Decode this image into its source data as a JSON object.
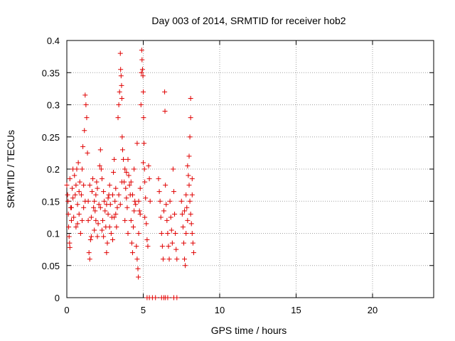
{
  "chart_data": {
    "type": "scatter",
    "title": "Day 003 of 2014, SRMTID for receiver hob2",
    "xlabel": "GPS time / hours",
    "ylabel": "SRMTID / TECUs",
    "xlim": [
      0,
      24
    ],
    "ylim": [
      0,
      0.4
    ],
    "x_ticks": [
      0,
      5,
      10,
      15,
      20
    ],
    "y_ticks": [
      0,
      0.05,
      0.1,
      0.15,
      0.2,
      0.25,
      0.3,
      0.35,
      0.4
    ],
    "x_tick_labels": [
      "0",
      "5",
      "10",
      "15",
      "20"
    ],
    "y_tick_labels": [
      "0",
      "0.05",
      "0.1",
      "0.15",
      "0.2",
      "0.25",
      "0.3",
      "0.35",
      "0.4"
    ],
    "grid": true,
    "marker": "+",
    "marker_color": "#e00000",
    "series": [
      {
        "points": [
          [
            0.0,
            0.175
          ],
          [
            0.05,
            0.16
          ],
          [
            0.08,
            0.15
          ],
          [
            0.1,
            0.13
          ],
          [
            0.12,
            0.11
          ],
          [
            0.15,
            0.095
          ],
          [
            0.18,
            0.085
          ],
          [
            0.2,
            0.078
          ],
          [
            0.25,
            0.14
          ],
          [
            0.3,
            0.12
          ],
          [
            0.35,
            0.17
          ],
          [
            0.4,
            0.155
          ],
          [
            0.45,
            0.125
          ],
          [
            0.5,
            0.19
          ],
          [
            0.55,
            0.16
          ],
          [
            0.6,
            0.11
          ],
          [
            0.65,
            0.2
          ],
          [
            0.7,
            0.145
          ],
          [
            0.75,
            0.21
          ],
          [
            0.8,
            0.13
          ],
          [
            0.85,
            0.18
          ],
          [
            0.9,
            0.1
          ],
          [
            0.95,
            0.16
          ],
          [
            1.0,
            0.12
          ],
          [
            1.05,
            0.235
          ],
          [
            1.1,
            0.175
          ],
          [
            1.15,
            0.26
          ],
          [
            1.2,
            0.315
          ],
          [
            1.25,
            0.3
          ],
          [
            1.3,
            0.28
          ],
          [
            1.35,
            0.225
          ],
          [
            1.4,
            0.15
          ],
          [
            1.45,
            0.07
          ],
          [
            1.5,
            0.06
          ],
          [
            1.55,
            0.09
          ],
          [
            1.6,
            0.125
          ],
          [
            1.65,
            0.165
          ],
          [
            1.7,
            0.185
          ],
          [
            1.75,
            0.14
          ],
          [
            1.8,
            0.105
          ],
          [
            1.85,
            0.135
          ],
          [
            1.9,
            0.16
          ],
          [
            1.95,
            0.18
          ],
          [
            2.0,
            0.095
          ],
          [
            2.05,
            0.115
          ],
          [
            2.1,
            0.145
          ],
          [
            2.15,
            0.205
          ],
          [
            2.2,
            0.23
          ],
          [
            2.25,
            0.2
          ],
          [
            2.3,
            0.185
          ],
          [
            2.35,
            0.12
          ],
          [
            2.4,
            0.095
          ],
          [
            2.45,
            0.15
          ],
          [
            2.5,
            0.135
          ],
          [
            2.55,
            0.11
          ],
          [
            2.6,
            0.07
          ],
          [
            2.65,
            0.085
          ],
          [
            2.7,
            0.13
          ],
          [
            2.75,
            0.16
          ],
          [
            2.8,
            0.175
          ],
          [
            2.85,
            0.145
          ],
          [
            2.9,
            0.1
          ],
          [
            2.95,
            0.125
          ],
          [
            3.0,
            0.16
          ],
          [
            3.05,
            0.195
          ],
          [
            3.1,
            0.215
          ],
          [
            3.15,
            0.15
          ],
          [
            3.2,
            0.13
          ],
          [
            3.25,
            0.11
          ],
          [
            3.3,
            0.14
          ],
          [
            3.35,
            0.28
          ],
          [
            3.4,
            0.3
          ],
          [
            3.45,
            0.32
          ],
          [
            3.5,
            0.38
          ],
          [
            3.52,
            0.355
          ],
          [
            3.55,
            0.345
          ],
          [
            3.58,
            0.33
          ],
          [
            3.6,
            0.31
          ],
          [
            3.62,
            0.25
          ],
          [
            3.65,
            0.23
          ],
          [
            3.7,
            0.215
          ],
          [
            3.75,
            0.18
          ],
          [
            3.8,
            0.2
          ],
          [
            3.85,
            0.17
          ],
          [
            3.9,
            0.155
          ],
          [
            3.95,
            0.14
          ],
          [
            4.0,
            0.215
          ],
          [
            4.05,
            0.19
          ],
          [
            4.1,
            0.175
          ],
          [
            4.15,
            0.16
          ],
          [
            4.2,
            0.12
          ],
          [
            4.25,
            0.085
          ],
          [
            4.3,
            0.07
          ],
          [
            4.35,
            0.11
          ],
          [
            4.4,
            0.135
          ],
          [
            4.45,
            0.15
          ],
          [
            4.5,
            0.145
          ],
          [
            4.55,
            0.08
          ],
          [
            4.6,
            0.06
          ],
          [
            4.65,
            0.045
          ],
          [
            4.68,
            0.032
          ],
          [
            4.7,
            0.1
          ],
          [
            4.75,
            0.135
          ],
          [
            4.8,
            0.17
          ],
          [
            4.85,
            0.3
          ],
          [
            4.88,
            0.35
          ],
          [
            4.9,
            0.385
          ],
          [
            4.92,
            0.37
          ],
          [
            4.95,
            0.355
          ],
          [
            4.98,
            0.345
          ],
          [
            5.0,
            0.32
          ],
          [
            5.02,
            0.28
          ],
          [
            5.05,
            0.24
          ],
          [
            5.08,
            0.2
          ],
          [
            5.1,
            0.18
          ],
          [
            5.15,
            0.155
          ],
          [
            5.2,
            0.115
          ],
          [
            5.25,
            0.09
          ],
          [
            5.3,
            0.08
          ],
          [
            5.35,
            0.205
          ],
          [
            5.4,
            0.185
          ],
          [
            5.45,
            0.15
          ],
          [
            0.2,
            0.185
          ],
          [
            0.4,
            0.2
          ],
          [
            0.6,
            0.175
          ],
          [
            0.8,
            0.165
          ],
          [
            1.0,
            0.2
          ],
          [
            1.2,
            0.15
          ],
          [
            1.4,
            0.12
          ],
          [
            1.6,
            0.095
          ],
          [
            1.8,
            0.15
          ],
          [
            2.0,
            0.17
          ],
          [
            2.2,
            0.14
          ],
          [
            2.4,
            0.165
          ],
          [
            2.6,
            0.145
          ],
          [
            2.8,
            0.11
          ],
          [
            3.0,
            0.09
          ],
          [
            3.2,
            0.17
          ],
          [
            3.4,
            0.16
          ],
          [
            3.6,
            0.18
          ],
          [
            3.8,
            0.12
          ],
          [
            4.0,
            0.1
          ],
          [
            4.2,
            0.18
          ],
          [
            4.4,
            0.2
          ],
          [
            4.6,
            0.24
          ],
          [
            4.8,
            0.13
          ],
          [
            5.0,
            0.21
          ],
          [
            0.3,
            0.14
          ],
          [
            0.7,
            0.115
          ],
          [
            1.1,
            0.14
          ],
          [
            1.5,
            0.175
          ],
          [
            1.9,
            0.12
          ],
          [
            2.3,
            0.105
          ],
          [
            2.7,
            0.155
          ],
          [
            3.1,
            0.125
          ],
          [
            3.5,
            0.145
          ],
          [
            3.9,
            0.195
          ],
          [
            4.3,
            0.16
          ],
          [
            4.7,
            0.15
          ],
          [
            5.1,
            0.125
          ],
          [
            6.0,
            0.185
          ],
          [
            6.05,
            0.165
          ],
          [
            6.1,
            0.15
          ],
          [
            6.15,
            0.125
          ],
          [
            6.2,
            0.1
          ],
          [
            6.25,
            0.08
          ],
          [
            6.3,
            0.06
          ],
          [
            6.35,
            0.135
          ],
          [
            6.4,
            0.32
          ],
          [
            6.42,
            0.29
          ],
          [
            6.45,
            0.175
          ],
          [
            6.5,
            0.145
          ],
          [
            6.55,
            0.12
          ],
          [
            6.6,
            0.1
          ],
          [
            6.65,
            0.08
          ],
          [
            6.7,
            0.06
          ],
          [
            6.75,
            0.15
          ],
          [
            6.8,
            0.125
          ],
          [
            6.85,
            0.105
          ],
          [
            6.9,
            0.085
          ],
          [
            6.95,
            0.2
          ],
          [
            7.0,
            0.165
          ],
          [
            7.05,
            0.13
          ],
          [
            7.1,
            0.1
          ],
          [
            7.15,
            0.075
          ],
          [
            7.2,
            0.06
          ],
          [
            7.5,
            0.15
          ],
          [
            7.55,
            0.13
          ],
          [
            7.6,
            0.11
          ],
          [
            7.65,
            0.085
          ],
          [
            7.7,
            0.06
          ],
          [
            7.75,
            0.05
          ],
          [
            7.8,
            0.16
          ],
          [
            7.85,
            0.14
          ],
          [
            7.9,
            0.12
          ],
          [
            7.95,
            0.19
          ],
          [
            8.0,
            0.175
          ],
          [
            8.05,
            0.15
          ],
          [
            8.1,
            0.13
          ],
          [
            8.15,
            0.115
          ],
          [
            8.2,
            0.1
          ],
          [
            8.25,
            0.085
          ],
          [
            8.3,
            0.07
          ],
          [
            8.0,
            0.22
          ],
          [
            8.05,
            0.25
          ],
          [
            8.1,
            0.28
          ],
          [
            8.1,
            0.31
          ],
          [
            7.9,
            0.205
          ],
          [
            8.2,
            0.185
          ],
          [
            7.7,
            0.135
          ],
          [
            7.8,
            0.1
          ],
          [
            8.2,
            0.16
          ],
          [
            5.25,
            0.0
          ],
          [
            5.4,
            0.0
          ],
          [
            5.6,
            0.0
          ],
          [
            5.8,
            0.0
          ],
          [
            6.2,
            0.0
          ],
          [
            6.35,
            0.0
          ],
          [
            6.45,
            0.0
          ],
          [
            6.6,
            0.0
          ],
          [
            7.0,
            0.0
          ],
          [
            7.2,
            0.0
          ]
        ]
      }
    ]
  }
}
